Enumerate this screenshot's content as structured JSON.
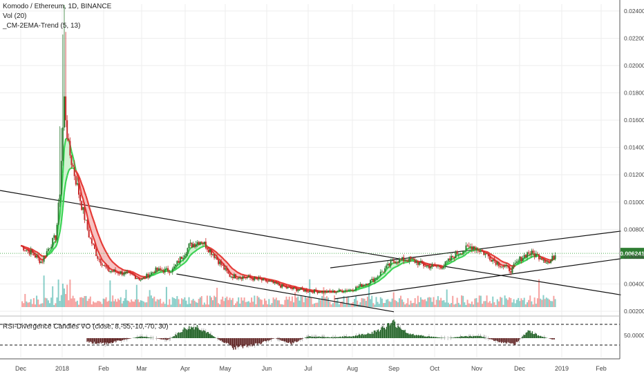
{
  "header": {
    "symbol": "Komodo / Ethereum, 1D, BINANCE",
    "vol": "Vol (20)",
    "ema": "_CM-2EMA-Trend (5, 13)"
  },
  "rsi_panel": {
    "title": "RSI-Divergence Candles VO (close, 8,-55,-10,-70, 30)",
    "level_label": "50.0000"
  },
  "colors": {
    "up": "#26a69a",
    "down": "#ef5350",
    "ema_up": "#39d353",
    "ema_down": "#e53935",
    "price_line": "#4caf50",
    "price_badge": "#2e7d32",
    "rsi_positive": "#1b5e20",
    "rsi_negative": "#5d1f1f",
    "trendline": "#111111",
    "grid": "#eeeeee"
  },
  "chart_data": {
    "type": "candlestick",
    "x_ticks": [
      "Dec",
      "2018",
      "Feb",
      "Mar",
      "Apr",
      "May",
      "Jun",
      "Jul",
      "Aug",
      "Sep",
      "Oct",
      "Nov",
      "Dec",
      "2019",
      "Feb"
    ],
    "y_ticks": [
      "0.024000",
      "0.022000",
      "0.020000",
      "0.018000",
      "0.016000",
      "0.014000",
      "0.012000",
      "0.010000",
      "0.008000",
      "0.006000",
      "0.004000",
      "0.002000"
    ],
    "ylim": [
      0.0019,
      0.0245
    ],
    "current_price": "0.006241",
    "current_price_value": 0.006241,
    "price_path": [
      {
        "m": 0.0,
        "v": 0.0068
      },
      {
        "m": 0.3,
        "v": 0.0062
      },
      {
        "m": 0.5,
        "v": 0.0056
      },
      {
        "m": 0.7,
        "v": 0.0068
      },
      {
        "m": 0.85,
        "v": 0.0075
      },
      {
        "m": 0.95,
        "v": 0.011
      },
      {
        "m": 1.0,
        "v": 0.0145
      },
      {
        "m": 1.05,
        "v": 0.0175
      },
      {
        "m": 1.15,
        "v": 0.014
      },
      {
        "m": 1.3,
        "v": 0.012
      },
      {
        "m": 1.45,
        "v": 0.01
      },
      {
        "m": 1.65,
        "v": 0.0075
      },
      {
        "m": 1.85,
        "v": 0.006
      },
      {
        "m": 2.1,
        "v": 0.005
      },
      {
        "m": 2.5,
        "v": 0.0048
      },
      {
        "m": 2.8,
        "v": 0.0046
      },
      {
        "m": 3.0,
        "v": 0.0043
      },
      {
        "m": 3.3,
        "v": 0.005
      },
      {
        "m": 3.7,
        "v": 0.005
      },
      {
        "m": 4.1,
        "v": 0.0068
      },
      {
        "m": 4.4,
        "v": 0.0072
      },
      {
        "m": 4.7,
        "v": 0.0062
      },
      {
        "m": 5.1,
        "v": 0.0046
      },
      {
        "m": 5.5,
        "v": 0.0045
      },
      {
        "m": 6.0,
        "v": 0.0042
      },
      {
        "m": 6.5,
        "v": 0.0037
      },
      {
        "m": 7.0,
        "v": 0.0035
      },
      {
        "m": 7.5,
        "v": 0.0034
      },
      {
        "m": 8.0,
        "v": 0.0036
      },
      {
        "m": 8.5,
        "v": 0.0043
      },
      {
        "m": 9.0,
        "v": 0.0057
      },
      {
        "m": 9.4,
        "v": 0.0058
      },
      {
        "m": 9.8,
        "v": 0.0053
      },
      {
        "m": 10.2,
        "v": 0.0053
      },
      {
        "m": 10.5,
        "v": 0.0062
      },
      {
        "m": 10.9,
        "v": 0.0068
      },
      {
        "m": 11.2,
        "v": 0.0062
      },
      {
        "m": 11.5,
        "v": 0.0055
      },
      {
        "m": 11.8,
        "v": 0.005
      },
      {
        "m": 12.0,
        "v": 0.0058
      },
      {
        "m": 12.2,
        "v": 0.0063
      },
      {
        "m": 12.5,
        "v": 0.006
      },
      {
        "m": 12.7,
        "v": 0.0055
      },
      {
        "m": 12.85,
        "v": 0.0062
      }
    ],
    "trendlines": [
      {
        "m1": -0.5,
        "v1": 0.01085,
        "m2": 9.5,
        "v2": 0.00565
      },
      {
        "m1": 9.5,
        "v1": 0.00565,
        "m2": 14.5,
        "v2": 0.0032
      },
      {
        "m1": 3.8,
        "v1": 0.00473,
        "m2": 9.0,
        "v2": 0.00196
      },
      {
        "m1": 7.6,
        "v1": 0.00291,
        "m2": 14.5,
        "v2": 0.00585
      },
      {
        "m1": 7.5,
        "v1": 0.00518,
        "m2": 14.5,
        "v2": 0.00787
      }
    ],
    "rsi_path": [
      {
        "m": 1.6,
        "v": -2
      },
      {
        "m": 2.0,
        "v": -3
      },
      {
        "m": 2.5,
        "v": -1
      },
      {
        "m": 3.0,
        "v": 1
      },
      {
        "m": 3.6,
        "v": -1
      },
      {
        "m": 4.0,
        "v": 5
      },
      {
        "m": 4.3,
        "v": 6
      },
      {
        "m": 4.7,
        "v": 1
      },
      {
        "m": 5.2,
        "v": -5
      },
      {
        "m": 5.8,
        "v": -3
      },
      {
        "m": 6.2,
        "v": 0
      },
      {
        "m": 6.6,
        "v": -3
      },
      {
        "m": 7.0,
        "v": 1
      },
      {
        "m": 7.5,
        "v": 0.5
      },
      {
        "m": 8.0,
        "v": 1
      },
      {
        "m": 8.5,
        "v": 3
      },
      {
        "m": 9.0,
        "v": 8
      },
      {
        "m": 9.4,
        "v": 2
      },
      {
        "m": 9.8,
        "v": 1
      },
      {
        "m": 10.3,
        "v": 0
      },
      {
        "m": 10.7,
        "v": 1
      },
      {
        "m": 11.1,
        "v": 1
      },
      {
        "m": 11.5,
        "v": -2
      },
      {
        "m": 11.9,
        "v": -3
      },
      {
        "m": 12.2,
        "v": 4
      },
      {
        "m": 12.5,
        "v": 1
      },
      {
        "m": 12.85,
        "v": -1
      }
    ],
    "rsi_ylim": [
      -10,
      10
    ]
  }
}
